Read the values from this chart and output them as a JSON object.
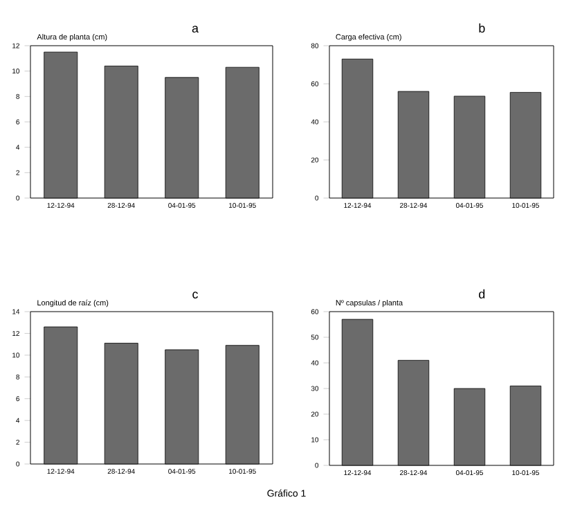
{
  "chart_data": [
    {
      "type": "bar",
      "title": "a",
      "ylabel": "Altura de planta (cm)",
      "categories": [
        "12-12-94",
        "28-12-94",
        "04-01-95",
        "10-01-95"
      ],
      "values": [
        11.5,
        10.4,
        9.5,
        10.3
      ],
      "color": "#6b6b6b",
      "ylim": [
        0,
        12
      ],
      "yticks": [
        0,
        2,
        4,
        6,
        8,
        10,
        12
      ]
    },
    {
      "type": "bar",
      "title": "b",
      "ylabel": "Carga efectiva (cm)",
      "categories": [
        "12-12-94",
        "28-12-94",
        "04-01-95",
        "10-01-95"
      ],
      "values": [
        73,
        56,
        53.5,
        55.5
      ],
      "color": "#6b6b6b",
      "ylim": [
        0,
        80
      ],
      "yticks": [
        0,
        20,
        40,
        60,
        80
      ]
    },
    {
      "type": "bar",
      "title": "c",
      "ylabel": "Longitud de raíz (cm)",
      "categories": [
        "12-12-94",
        "28-12-94",
        "04-01-95",
        "10-01-95"
      ],
      "values": [
        12.6,
        11.1,
        10.5,
        10.9
      ],
      "color": "#6b6b6b",
      "ylim": [
        0,
        14
      ],
      "yticks": [
        0,
        2,
        4,
        6,
        8,
        10,
        12,
        14
      ]
    },
    {
      "type": "bar",
      "title": "d",
      "ylabel": "Nº capsulas / planta",
      "categories": [
        "12-12-94",
        "28-12-94",
        "04-01-95",
        "10-01-95"
      ],
      "values": [
        57,
        41,
        30,
        31
      ],
      "color": "#6b6b6b",
      "ylim": [
        0,
        60
      ],
      "yticks": [
        0,
        10,
        20,
        30,
        40,
        50,
        60
      ],
      "annotations": [
        "Gráfico 1"
      ]
    }
  ]
}
